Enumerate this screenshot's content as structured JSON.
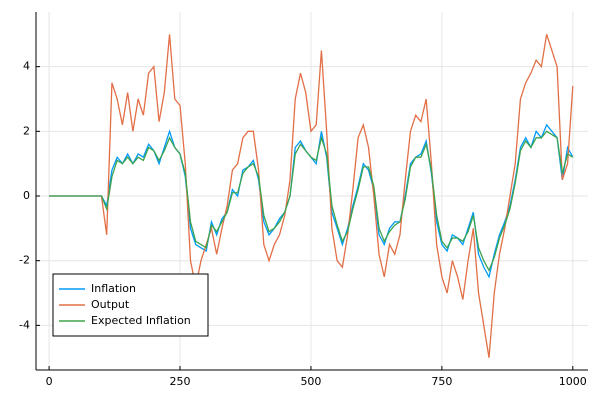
{
  "chart_data": {
    "type": "line",
    "x": [
      0,
      10,
      20,
      30,
      40,
      50,
      60,
      70,
      80,
      90,
      100,
      110,
      120,
      130,
      140,
      150,
      160,
      170,
      180,
      190,
      200,
      210,
      220,
      230,
      240,
      250,
      260,
      270,
      280,
      290,
      300,
      310,
      320,
      330,
      340,
      350,
      360,
      370,
      380,
      390,
      400,
      410,
      420,
      430,
      440,
      450,
      460,
      470,
      480,
      490,
      500,
      510,
      520,
      530,
      540,
      550,
      560,
      570,
      580,
      590,
      600,
      610,
      620,
      630,
      640,
      650,
      660,
      670,
      680,
      690,
      700,
      710,
      720,
      730,
      740,
      750,
      760,
      770,
      780,
      790,
      800,
      810,
      820,
      830,
      840,
      850,
      860,
      870,
      880,
      890,
      900,
      910,
      920,
      930,
      940,
      950,
      960,
      970,
      980,
      990,
      1000
    ],
    "series": [
      {
        "name": "Inflation",
        "color": "#009af9",
        "values": [
          0,
          0,
          0,
          0,
          0,
          0,
          0,
          0,
          0,
          0,
          0,
          -0.3,
          0.8,
          1.2,
          1.0,
          1.3,
          1.0,
          1.3,
          1.2,
          1.6,
          1.4,
          1.0,
          1.5,
          2.0,
          1.5,
          1.3,
          0.6,
          -1.0,
          -1.5,
          -1.6,
          -1.7,
          -0.8,
          -1.2,
          -0.7,
          -0.5,
          0.2,
          0.0,
          0.8,
          0.9,
          1.1,
          0.5,
          -0.8,
          -1.2,
          -1.0,
          -0.7,
          -0.5,
          0.0,
          1.5,
          1.7,
          1.4,
          1.2,
          1.0,
          2.0,
          1.2,
          -0.5,
          -1.0,
          -1.5,
          -1.0,
          -0.3,
          0.3,
          1.0,
          0.8,
          0.2,
          -1.2,
          -1.5,
          -1.0,
          -0.8,
          -0.8,
          0.0,
          1.0,
          1.2,
          1.3,
          1.7,
          0.7,
          -0.8,
          -1.5,
          -1.7,
          -1.2,
          -1.3,
          -1.5,
          -1.0,
          -0.5,
          -1.8,
          -2.2,
          -2.5,
          -1.8,
          -1.2,
          -0.8,
          -0.3,
          0.5,
          1.5,
          1.8,
          1.5,
          2.0,
          1.8,
          2.2,
          2.0,
          1.8,
          0.5,
          1.5,
          1.2
        ]
      },
      {
        "name": "Output",
        "color": "#e26f46",
        "values": [
          0,
          0,
          0,
          0,
          0,
          0,
          0,
          0,
          0,
          0,
          0,
          -1.2,
          3.5,
          3.0,
          2.2,
          3.2,
          2.0,
          3.0,
          2.5,
          3.8,
          4.0,
          2.3,
          3.2,
          5.0,
          3.0,
          2.8,
          1.0,
          -2.0,
          -2.8,
          -2.0,
          -1.5,
          -1.0,
          -1.8,
          -1.0,
          -0.3,
          0.8,
          1.0,
          1.8,
          2.0,
          2.0,
          0.8,
          -1.5,
          -2.0,
          -1.5,
          -1.2,
          -0.6,
          0.5,
          3.0,
          3.8,
          3.2,
          2.0,
          2.2,
          4.5,
          2.0,
          -1.0,
          -2.0,
          -2.2,
          -1.2,
          0.2,
          1.8,
          2.2,
          1.5,
          0.0,
          -1.8,
          -2.5,
          -1.5,
          -1.8,
          -1.2,
          0.5,
          2.0,
          2.5,
          2.3,
          3.0,
          1.0,
          -1.5,
          -2.5,
          -3.0,
          -2.0,
          -2.5,
          -3.2,
          -2.0,
          -1.0,
          -3.0,
          -4.0,
          -5.0,
          -3.0,
          -1.8,
          -1.0,
          0.0,
          1.0,
          3.0,
          3.5,
          3.8,
          4.2,
          4.0,
          5.0,
          4.5,
          4.0,
          0.5,
          1.0,
          3.4
        ]
      },
      {
        "name": "Expected Inflation",
        "color": "#3da44d",
        "values": [
          0,
          0,
          0,
          0,
          0,
          0,
          0,
          0,
          0,
          0,
          0,
          -0.4,
          0.6,
          1.1,
          1.0,
          1.2,
          1.0,
          1.2,
          1.1,
          1.5,
          1.4,
          1.1,
          1.4,
          1.8,
          1.5,
          1.3,
          0.7,
          -0.8,
          -1.4,
          -1.5,
          -1.6,
          -0.9,
          -1.1,
          -0.8,
          -0.5,
          0.1,
          0.1,
          0.7,
          0.9,
          1.0,
          0.6,
          -0.6,
          -1.1,
          -1.0,
          -0.8,
          -0.5,
          0.0,
          1.3,
          1.6,
          1.4,
          1.2,
          1.1,
          1.8,
          1.3,
          -0.3,
          -0.9,
          -1.4,
          -1.1,
          -0.4,
          0.2,
          0.9,
          0.9,
          0.3,
          -1.0,
          -1.4,
          -1.1,
          -0.9,
          -0.8,
          -0.1,
          0.9,
          1.2,
          1.2,
          1.6,
          0.8,
          -0.6,
          -1.4,
          -1.6,
          -1.3,
          -1.3,
          -1.4,
          -1.1,
          -0.6,
          -1.6,
          -2.0,
          -2.3,
          -1.9,
          -1.3,
          -0.9,
          -0.4,
          0.4,
          1.4,
          1.7,
          1.5,
          1.8,
          1.8,
          2.0,
          1.9,
          1.8,
          0.7,
          1.3,
          1.2
        ]
      }
    ],
    "xlim": [
      -25,
      1029
    ],
    "xticks": [
      0,
      250,
      500,
      750,
      1000
    ],
    "ylim": [
      -5.38,
      5.69
    ],
    "yticks": [
      -4,
      -2,
      0,
      2,
      4
    ],
    "grid": true,
    "legend": "bottom-left"
  }
}
